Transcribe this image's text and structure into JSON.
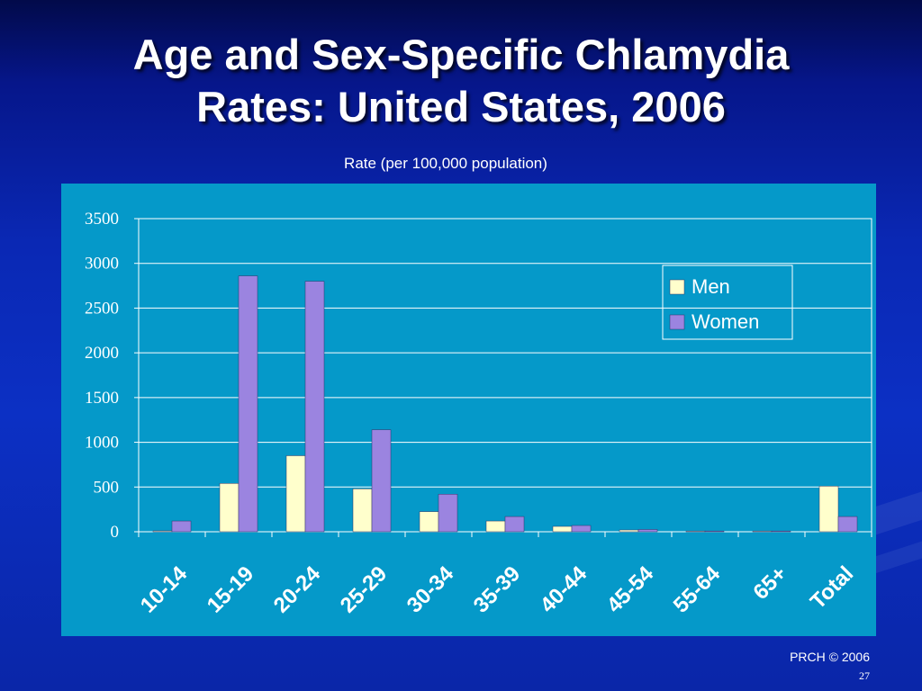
{
  "slide": {
    "title_line1": "Age and Sex-Specific Chlamydia",
    "title_line2": "Rates: United States, 2006",
    "subtitle": "Rate (per 100,000 population)",
    "footer": "PRCH © 2006",
    "page_number": "27"
  },
  "colors": {
    "background": "#0a28b4",
    "chart_panel": "#0599c9",
    "men": "#ffffcc",
    "women": "#9b84e0",
    "text": "#ffffff"
  },
  "chart_data": {
    "type": "bar",
    "title": "",
    "xlabel": "",
    "ylabel": "",
    "categories": [
      "10-14",
      "15-19",
      "20-24",
      "25-29",
      "30-34",
      "35-39",
      "40-44",
      "45-54",
      "55-64",
      "65+",
      "Total"
    ],
    "series": [
      {
        "name": "Men",
        "values": [
          10,
          540,
          850,
          480,
          225,
          120,
          60,
          20,
          8,
          2,
          510
        ]
      },
      {
        "name": "Women",
        "values": [
          120,
          2860,
          2800,
          1140,
          420,
          170,
          70,
          25,
          8,
          2,
          170
        ]
      }
    ],
    "ylim": [
      0,
      3500
    ],
    "yticks": [
      0,
      500,
      1000,
      1500,
      2000,
      2500,
      3000,
      3500
    ],
    "grid": true,
    "legend_position": "top-right"
  }
}
